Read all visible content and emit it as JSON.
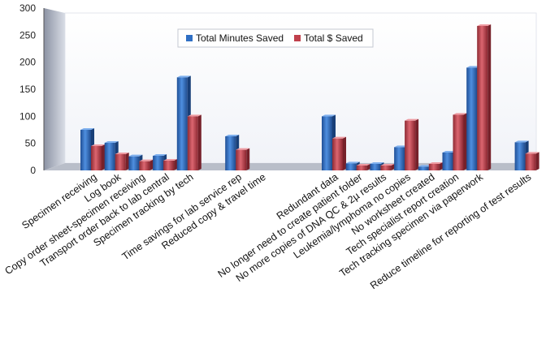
{
  "chart_data": {
    "type": "bar",
    "title": "",
    "xlabel": "",
    "ylabel": "",
    "ylim": [
      0,
      300
    ],
    "yticks": [
      0,
      50,
      100,
      150,
      200,
      250,
      300
    ],
    "grid": false,
    "legend": "top-center",
    "categories": [
      "Specimen receiving",
      "Log book",
      "Copy order sheet-specimen receiving",
      "Transport order back to lab central",
      "Specimen tracking by tech",
      "",
      "Time savings for lab service rep",
      "Reduced copy & travel time",
      "",
      "",
      "Redundant data",
      "No longer need to create patient folder",
      "No more copies of DNA QC & 2µ results",
      "Leukemia/lymphoma no copies",
      "No worksheet created",
      "Tech specialist report creation",
      "Tech tracking specimen via paperwork",
      "",
      "Reduce timeline for reporting of test results"
    ],
    "series": [
      {
        "name": "Total Minutes Saved",
        "color": "#2f6fc4",
        "values": [
          75,
          51,
          26,
          27,
          172,
          null,
          63,
          null,
          null,
          null,
          100,
          13,
          12,
          43,
          7,
          33,
          190,
          null,
          52
        ]
      },
      {
        "name": "Total $ Saved",
        "color": "#c0404c",
        "values": [
          45,
          30,
          17,
          18,
          100,
          null,
          38,
          null,
          null,
          null,
          59,
          9,
          9,
          92,
          12,
          103,
          267,
          null,
          31
        ]
      }
    ]
  }
}
